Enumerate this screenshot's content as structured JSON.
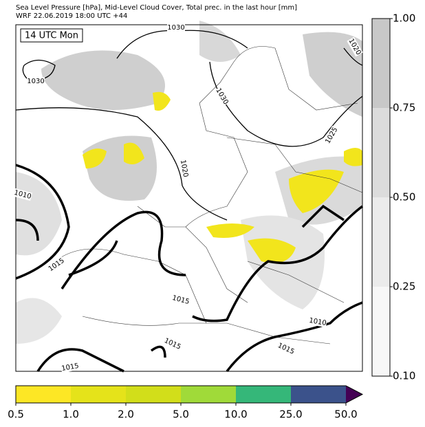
{
  "header": {
    "lines": [
      "Sea Level Pressure [hPa], Mid-Level Cloud Cover, Total prec. in the last hour [mm]",
      "WRF 22.06.2019 18:00 UTC +44"
    ]
  },
  "map": {
    "time_label": "14 UTC Mon",
    "contour_labels": [
      "1030",
      "1030",
      "1030",
      "1025",
      "1020",
      "1020",
      "1010",
      "1015",
      "1015",
      "1015",
      "1015",
      "1010",
      "1015"
    ]
  },
  "cloud_colorbar": {
    "ticks": [
      "1.00",
      "0.75",
      "0.50",
      "0.25",
      "0.10"
    ],
    "colors": [
      "#c8c8c8",
      "#dcdcdc",
      "#ebebeb",
      "#f7f7f7"
    ]
  },
  "precip_colorbar": {
    "ticks": [
      "0.5",
      "1.0",
      "2.0",
      "5.0",
      "10.0",
      "25.0",
      "50.0"
    ],
    "colors": [
      "#fde725",
      "#e5e31a",
      "#d2de1a",
      "#a0da39",
      "#35b779",
      "#3b528b",
      "#440154"
    ]
  }
}
